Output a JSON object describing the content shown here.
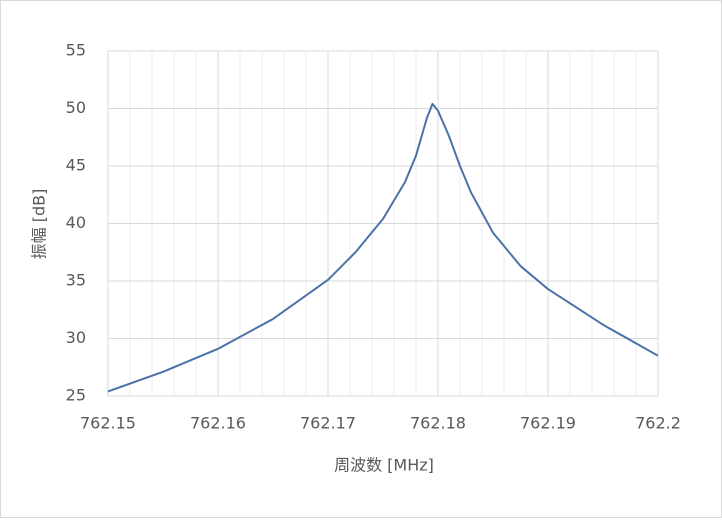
{
  "chart_data": {
    "type": "line",
    "xlabel": "周波数 [MHz]",
    "ylabel": "振幅 [dB]",
    "x": [
      762.15,
      762.155,
      762.16,
      762.165,
      762.17,
      762.1725,
      762.175,
      762.177,
      762.178,
      762.179,
      762.1795,
      762.18,
      762.181,
      762.182,
      762.183,
      762.185,
      762.1875,
      762.19,
      762.195,
      762.2
    ],
    "series": [
      {
        "color": "#4a72a8",
        "values": [
          25.4,
          27.1,
          29.1,
          31.7,
          35.1,
          37.5,
          40.4,
          43.6,
          45.9,
          49.2,
          50.4,
          49.8,
          47.6,
          45.0,
          42.7,
          39.2,
          36.3,
          34.3,
          31.2,
          28.5
        ]
      }
    ],
    "xlim": [
      762.15,
      762.2
    ],
    "xticks": [
      762.15,
      762.16,
      762.17,
      762.18,
      762.19,
      762.2
    ],
    "xminorticks": [
      762.152,
      762.154,
      762.156,
      762.158,
      762.162,
      762.164,
      762.166,
      762.168,
      762.172,
      762.174,
      762.176,
      762.178,
      762.182,
      762.184,
      762.186,
      762.188,
      762.192,
      762.194,
      762.196,
      762.198
    ],
    "ylim": [
      25,
      55
    ],
    "yticks": [
      25,
      30,
      35,
      40,
      45,
      50,
      55
    ],
    "grid": true
  }
}
